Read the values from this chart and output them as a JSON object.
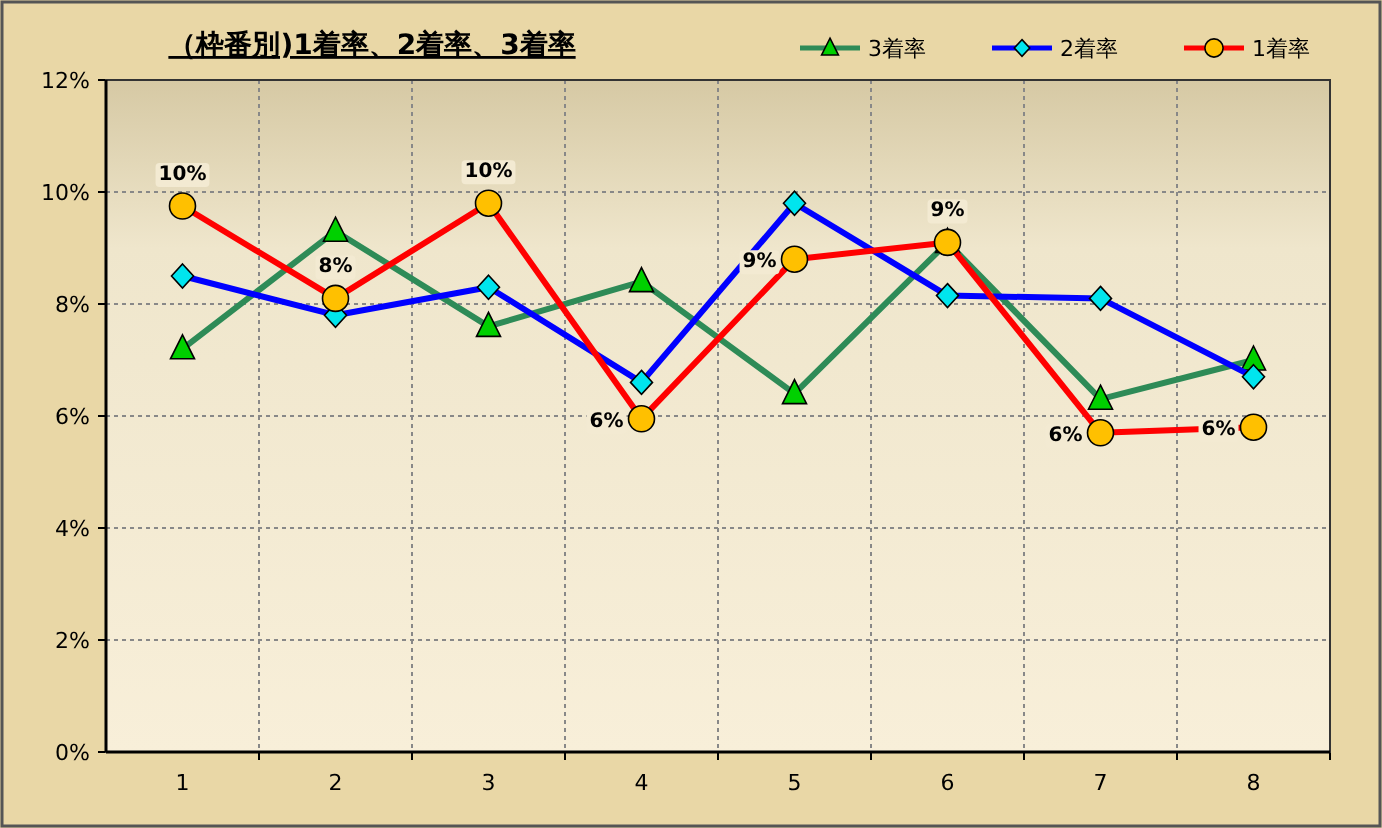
{
  "chart_data": {
    "type": "line",
    "title": "（枠番別)1着率、2着率、3着率",
    "categories": [
      "1",
      "2",
      "3",
      "4",
      "5",
      "6",
      "7",
      "8"
    ],
    "ylim": [
      0,
      12
    ],
    "yticks": [
      {
        "value": 0,
        "label": "0%"
      },
      {
        "value": 2,
        "label": "2%"
      },
      {
        "value": 4,
        "label": "4%"
      },
      {
        "value": 6,
        "label": "6%"
      },
      {
        "value": 8,
        "label": "8%"
      },
      {
        "value": 10,
        "label": "10%"
      },
      {
        "value": 12,
        "label": "12%"
      }
    ],
    "grid": true,
    "legend": "top right",
    "series": [
      {
        "name": "3着率",
        "color": "#2e8b57",
        "marker": "triangle",
        "values": [
          7.2,
          9.3,
          7.6,
          8.4,
          6.4,
          9.1,
          6.3,
          7.0
        ]
      },
      {
        "name": "2着率",
        "color": "#0000ff",
        "marker": "diamond",
        "values": [
          8.5,
          7.8,
          8.3,
          6.6,
          9.8,
          8.15,
          8.1,
          6.7
        ]
      },
      {
        "name": "1着率",
        "color": "#ff0000",
        "marker": "circle",
        "values": [
          9.75,
          8.1,
          9.8,
          5.95,
          8.8,
          9.1,
          5.7,
          5.8
        ],
        "value_labels": [
          "10%",
          "8%",
          "10%",
          "6%",
          "9%",
          "9%",
          "6%",
          "6%"
        ]
      }
    ]
  }
}
